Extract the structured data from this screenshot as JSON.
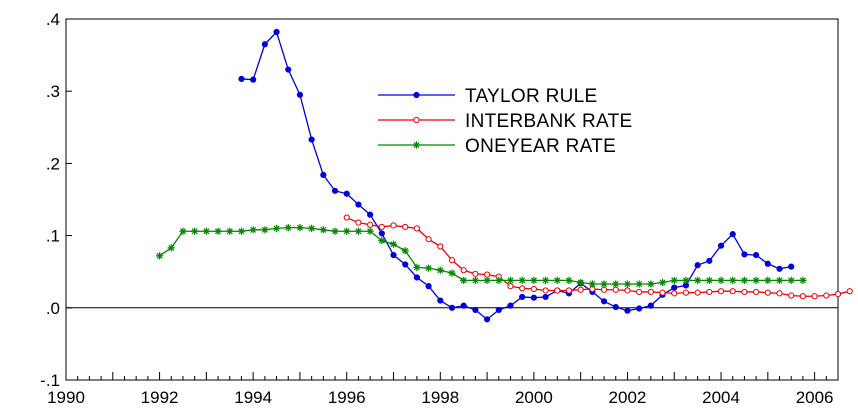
{
  "colors": {
    "taylor": "#0000dd",
    "interbank": "#ee0000",
    "oneyear": "#008800",
    "axis": "#000000",
    "background": "#ffffff"
  },
  "chart_data": {
    "type": "line",
    "title": "",
    "xlabel": "",
    "ylabel": "",
    "xlim": [
      1990,
      2006.5
    ],
    "ylim": [
      -0.1,
      0.4
    ],
    "x_ticks": [
      "1990",
      "1992",
      "1994",
      "1996",
      "1998",
      "2000",
      "2002",
      "2004",
      "2006"
    ],
    "y_ticks": [
      ".4",
      ".3",
      ".2",
      ".1",
      ".0",
      "-.1"
    ],
    "y_tick_values": [
      0.4,
      0.3,
      0.2,
      0.1,
      0.0,
      -0.1
    ],
    "x_major_years": [
      1990,
      1992,
      1994,
      1996,
      1998,
      2000,
      2002,
      2004,
      2006
    ],
    "zero_line": true,
    "grid": false,
    "legend_position": "top-center",
    "series": [
      {
        "name": "TAYLOR RULE",
        "color": "#0000dd",
        "marker": "dot",
        "start": 1993.75,
        "step": 0.25,
        "values": [
          0.317,
          0.316,
          0.365,
          0.382,
          0.33,
          0.295,
          0.233,
          0.184,
          0.162,
          0.158,
          0.143,
          0.129,
          0.103,
          0.073,
          0.06,
          0.042,
          0.03,
          0.01,
          0.0,
          0.003,
          -0.003,
          -0.016,
          -0.003,
          0.003,
          0.015,
          0.014,
          0.015,
          0.024,
          0.02,
          0.034,
          0.022,
          0.009,
          0.001,
          -0.004,
          -0.001,
          0.003,
          0.018,
          0.028,
          0.031,
          0.059,
          0.065,
          0.086,
          0.102,
          0.074,
          0.073,
          0.061,
          0.054,
          0.057
        ]
      },
      {
        "name": "INTERBANK RATE",
        "color": "#ee0000",
        "marker": "circle",
        "start": 1996.0,
        "step": 0.25,
        "values": [
          0.125,
          0.118,
          0.115,
          0.112,
          0.114,
          0.112,
          0.11,
          0.095,
          0.085,
          0.066,
          0.052,
          0.047,
          0.046,
          0.043,
          0.03,
          0.027,
          0.026,
          0.024,
          0.024,
          0.024,
          0.025,
          0.026,
          0.025,
          0.025,
          0.024,
          0.022,
          0.022,
          0.021,
          0.02,
          0.021,
          0.021,
          0.022,
          0.023,
          0.023,
          0.022,
          0.022,
          0.021,
          0.02,
          0.017,
          0.016,
          0.016,
          0.017,
          0.019,
          0.023
        ]
      },
      {
        "name": "ONEYEAR RATE",
        "color": "#008800",
        "marker": "star",
        "start": 1992.0,
        "step": 0.25,
        "values": [
          0.072,
          0.083,
          0.106,
          0.106,
          0.106,
          0.106,
          0.106,
          0.106,
          0.108,
          0.108,
          0.11,
          0.111,
          0.111,
          0.11,
          0.108,
          0.106,
          0.106,
          0.106,
          0.106,
          0.093,
          0.088,
          0.079,
          0.056,
          0.055,
          0.052,
          0.048,
          0.038,
          0.038,
          0.038,
          0.038,
          0.038,
          0.038,
          0.038,
          0.038,
          0.038,
          0.038,
          0.035,
          0.033,
          0.033,
          0.033,
          0.033,
          0.033,
          0.033,
          0.035,
          0.038,
          0.038,
          0.038,
          0.038,
          0.038,
          0.038,
          0.038,
          0.038,
          0.038,
          0.038,
          0.038,
          0.038
        ]
      }
    ]
  }
}
